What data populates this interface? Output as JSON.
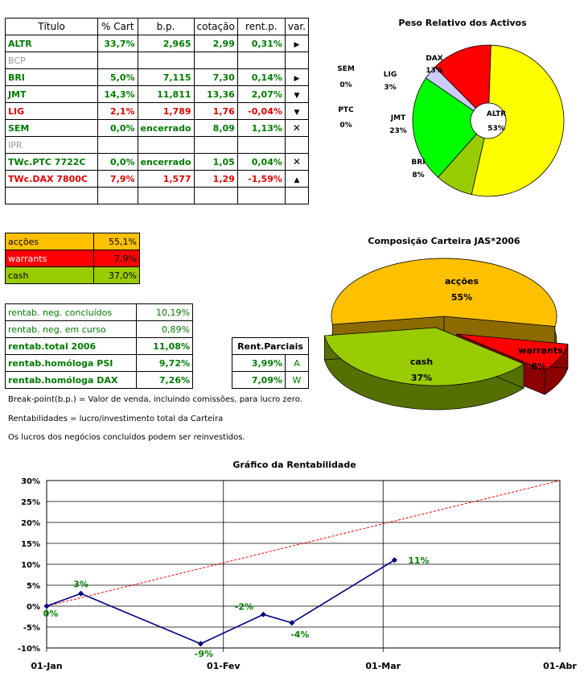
{
  "holdings_table": {
    "headers": [
      "Título",
      "% Cart",
      "b.p.",
      "cotação",
      "rent.p.",
      "var."
    ],
    "rows": [
      {
        "titulo": "ALTR",
        "cart": "33,7%",
        "bp": "2,965",
        "cot": "2,99",
        "rent": "0,31%",
        "var": "right",
        "color": "green"
      },
      {
        "titulo": "BCP",
        "cart": "",
        "bp": "",
        "cot": "",
        "rent": "",
        "var": "",
        "color": "gray"
      },
      {
        "titulo": "BRI",
        "cart": "5,0%",
        "bp": "7,115",
        "cot": "7,30",
        "rent": "0,14%",
        "var": "right",
        "color": "green"
      },
      {
        "titulo": "JMT",
        "cart": "14,3%",
        "bp": "11,811",
        "cot": "13,36",
        "rent": "2,07%",
        "var": "down",
        "color": "green"
      },
      {
        "titulo": "LIG",
        "cart": "2,1%",
        "bp": "1,789",
        "cot": "1,76",
        "rent": "-0,04%",
        "var": "down",
        "color": "red"
      },
      {
        "titulo": "SEM",
        "cart": "0,0%",
        "bp": "encerrado",
        "cot": "8,09",
        "rent": "1,13%",
        "var": "x",
        "color": "green"
      },
      {
        "titulo": "IPR",
        "cart": "",
        "bp": "",
        "cot": "",
        "rent": "",
        "var": "",
        "color": "gray"
      },
      {
        "titulo": "TWc.PTC 7722C",
        "cart": "0,0%",
        "bp": "encerrado",
        "cot": "1,05",
        "rent": "0,04%",
        "var": "x",
        "color": "green"
      },
      {
        "titulo": "TWc.DAX 7800C",
        "cart": "7,9%",
        "bp": "1,577",
        "cot": "1,29",
        "rent": "-1,59%",
        "var": "up",
        "color": "red"
      },
      {
        "titulo": "",
        "cart": "",
        "bp": "",
        "cot": "",
        "rent": "",
        "var": "",
        "color": "green"
      }
    ]
  },
  "allocation_table": [
    {
      "label": "acções",
      "value": "55,1%",
      "color": "#ffc000"
    },
    {
      "label": "warrants",
      "value": "7,9%",
      "color": "#ff0000"
    },
    {
      "label": "cash",
      "value": "37,0%",
      "color": "#99cc00"
    }
  ],
  "returns_table": [
    {
      "label": "rentab. neg. concluídos",
      "value": "10,19%",
      "bold": false
    },
    {
      "label": "rentab. neg. em curso",
      "value": "0,89%",
      "bold": false
    },
    {
      "label": "rentab.total 2006",
      "value": "11,08%",
      "bold": true
    },
    {
      "label": "rentab.homóloga PSI",
      "value": "9,72%",
      "bold": true
    },
    {
      "label": "rentab.homóloga DAX",
      "value": "7,26%",
      "bold": true
    }
  ],
  "partial_table": {
    "header": "Rent.Parciais",
    "rows": [
      {
        "value": "3,99%",
        "tag": "A"
      },
      {
        "value": "7,09%",
        "tag": "W"
      }
    ]
  },
  "notes": {
    "n1": "Break-point(b.p.) = Valor de venda, incluindo comissões, para lucro zero.",
    "n2": "Rentabilidades = lucro/investimento total da Carteira",
    "n3": "Os lucros dos negócios concluídos podem ser reinvestidos."
  },
  "chart_data": [
    {
      "type": "pie",
      "title": "Peso Relativo dos Activos",
      "slices": [
        {
          "label": "ALTR",
          "value": 53,
          "display": "53%",
          "color": "#ffff00"
        },
        {
          "label": "BRI",
          "value": 8,
          "display": "8%",
          "color": "#99cc00"
        },
        {
          "label": "JMT",
          "value": 23,
          "display": "23%",
          "color": "#00ff00"
        },
        {
          "label": "PTC",
          "value": 0,
          "display": "0%",
          "color": "#00ff00"
        },
        {
          "label": "SEM",
          "value": 0,
          "display": "0%",
          "color": "#00ff00"
        },
        {
          "label": "LIG",
          "value": 3,
          "display": "3%",
          "color": "#ccccff"
        },
        {
          "label": "DAX",
          "value": 13,
          "display": "13%",
          "color": "#ff0000"
        }
      ]
    },
    {
      "type": "pie",
      "title": "Composição Carteira JAS*2006",
      "slices": [
        {
          "label": "acções",
          "value": 55,
          "display": "55%",
          "color": "#ffc000",
          "side": "#8c6a00"
        },
        {
          "label": "warrants",
          "value": 8,
          "display": "8%",
          "color": "#ff0000",
          "side": "#8b0000"
        },
        {
          "label": "cash",
          "value": 37,
          "display": "37%",
          "color": "#99cc00",
          "side": "#557000"
        }
      ]
    },
    {
      "type": "line",
      "title": "Gráfico da Rentabilidade",
      "x_ticks": [
        "01-Jan",
        "01-Fev",
        "01-Mar",
        "01-Abr"
      ],
      "y_ticks": [
        "30%",
        "25%",
        "20%",
        "15%",
        "10%",
        "5%",
        "0%",
        "-5%",
        "-10%"
      ],
      "ylim": [
        -10,
        30
      ],
      "xlim_days": [
        0,
        90
      ],
      "series": [
        {
          "points": [
            {
              "day": 0,
              "y": 0,
              "label": "0%"
            },
            {
              "day": 6,
              "y": 3,
              "label": "3%"
            },
            {
              "day": 27,
              "y": -9,
              "label": "-9%"
            },
            {
              "day": 38,
              "y": -2,
              "label": "-2%"
            },
            {
              "day": 43,
              "y": -4,
              "label": "-4%"
            },
            {
              "day": 61,
              "y": 11,
              "label": "11%"
            }
          ],
          "color": "#000080"
        },
        {
          "points": [
            {
              "day": 0,
              "y": 0
            },
            {
              "day": 90,
              "y": 30
            }
          ],
          "color": "#ff0000",
          "dashed": true
        }
      ]
    }
  ]
}
